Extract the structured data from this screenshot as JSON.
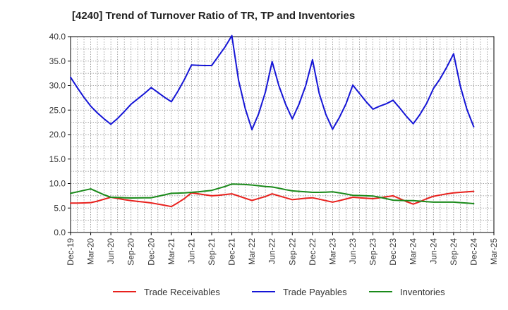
{
  "chart_data": {
    "type": "line",
    "title": "[4240]  Trend of Turnover Ratio of TR, TP and Inventories",
    "xlabel": "",
    "ylabel": "",
    "ylim": [
      0,
      40
    ],
    "yticks": [
      0,
      5,
      10,
      15,
      20,
      25,
      30,
      35,
      40
    ],
    "ytick_labels": [
      "0.0",
      "5.0",
      "10.0",
      "15.0",
      "20.0",
      "25.0",
      "30.0",
      "35.0",
      "40.0"
    ],
    "xticks": [
      "Dec-19",
      "Mar-20",
      "Jun-20",
      "Sep-20",
      "Dec-20",
      "Mar-21",
      "Jun-21",
      "Sep-21",
      "Dec-21",
      "Mar-22",
      "Jun-22",
      "Sep-22",
      "Dec-22",
      "Mar-23",
      "Jun-23",
      "Sep-23",
      "Dec-23",
      "Mar-24",
      "Jun-24",
      "Sep-24",
      "Dec-24",
      "Mar-25"
    ],
    "x": [
      "Dec-19",
      "Jan-20",
      "Feb-20",
      "Mar-20",
      "Apr-20",
      "May-20",
      "Jun-20",
      "Jul-20",
      "Aug-20",
      "Sep-20",
      "Oct-20",
      "Nov-20",
      "Dec-20",
      "Jan-21",
      "Feb-21",
      "Mar-21",
      "Apr-21",
      "May-21",
      "Jun-21",
      "Jul-21",
      "Aug-21",
      "Sep-21",
      "Oct-21",
      "Nov-21",
      "Dec-21",
      "Jan-22",
      "Feb-22",
      "Mar-22",
      "Apr-22",
      "May-22",
      "Jun-22",
      "Jul-22",
      "Aug-22",
      "Sep-22",
      "Oct-22",
      "Nov-22",
      "Dec-22",
      "Jan-23",
      "Feb-23",
      "Mar-23",
      "Apr-23",
      "May-23",
      "Jun-23",
      "Jul-23",
      "Aug-23",
      "Sep-23",
      "Oct-23",
      "Nov-23",
      "Dec-23",
      "Jan-24",
      "Feb-24",
      "Mar-24",
      "Apr-24",
      "May-24",
      "Jun-24",
      "Jul-24",
      "Aug-24",
      "Sep-24",
      "Oct-24",
      "Nov-24",
      "Dec-24"
    ],
    "grid": true,
    "legend": "bottom",
    "series": [
      {
        "name": "Trade Receivables",
        "color": "#e8211d",
        "values": [
          6.0,
          6.0,
          6.05,
          6.1,
          6.4,
          6.8,
          7.2,
          6.95,
          6.7,
          6.5,
          6.35,
          6.2,
          6.05,
          5.8,
          5.55,
          5.3,
          6.1,
          7.0,
          8.1,
          7.9,
          7.7,
          7.5,
          7.6,
          7.75,
          7.9,
          7.45,
          7.0,
          6.55,
          6.95,
          7.35,
          7.9,
          7.5,
          7.1,
          6.7,
          6.85,
          7.0,
          7.1,
          6.8,
          6.5,
          6.2,
          6.5,
          6.85,
          7.2,
          7.1,
          7.0,
          6.9,
          7.1,
          7.3,
          7.5,
          6.9,
          6.3,
          5.8,
          6.3,
          6.9,
          7.4,
          7.65,
          7.9,
          8.1,
          8.2,
          8.3,
          8.4
        ]
      },
      {
        "name": "Trade Payables",
        "color": "#1515d6",
        "values": [
          31.7,
          29.6,
          27.6,
          25.8,
          24.4,
          23.2,
          22.1,
          23.3,
          24.7,
          26.2,
          27.3,
          28.4,
          29.6,
          28.6,
          27.6,
          26.7,
          28.9,
          31.4,
          34.2,
          34.15,
          34.1,
          34.1,
          36.0,
          37.9,
          40.2,
          31.1,
          25.3,
          21.0,
          24.3,
          28.7,
          34.9,
          30.0,
          26.2,
          23.2,
          26.2,
          30.0,
          35.3,
          28.4,
          24.1,
          21.1,
          23.5,
          26.3,
          30.1,
          28.4,
          26.7,
          25.2,
          25.8,
          26.3,
          27.0,
          25.4,
          23.7,
          22.2,
          24.1,
          26.4,
          29.4,
          31.4,
          33.8,
          36.5,
          29.9,
          25.1,
          21.6
        ]
      },
      {
        "name": "Inventories",
        "color": "#1a8a1a",
        "values": [
          8.0,
          8.3,
          8.6,
          8.9,
          8.3,
          7.7,
          7.2,
          7.15,
          7.1,
          7.05,
          7.07,
          7.1,
          7.1,
          7.4,
          7.7,
          8.0,
          8.05,
          8.1,
          8.2,
          8.3,
          8.45,
          8.6,
          9.0,
          9.4,
          9.9,
          9.85,
          9.8,
          9.7,
          9.55,
          9.4,
          9.3,
          9.05,
          8.75,
          8.5,
          8.4,
          8.3,
          8.2,
          8.2,
          8.25,
          8.3,
          8.1,
          7.85,
          7.6,
          7.55,
          7.5,
          7.45,
          7.2,
          6.9,
          6.6,
          6.55,
          6.5,
          6.5,
          6.4,
          6.3,
          6.2,
          6.2,
          6.2,
          6.2,
          6.1,
          6.0,
          5.9
        ]
      }
    ]
  }
}
